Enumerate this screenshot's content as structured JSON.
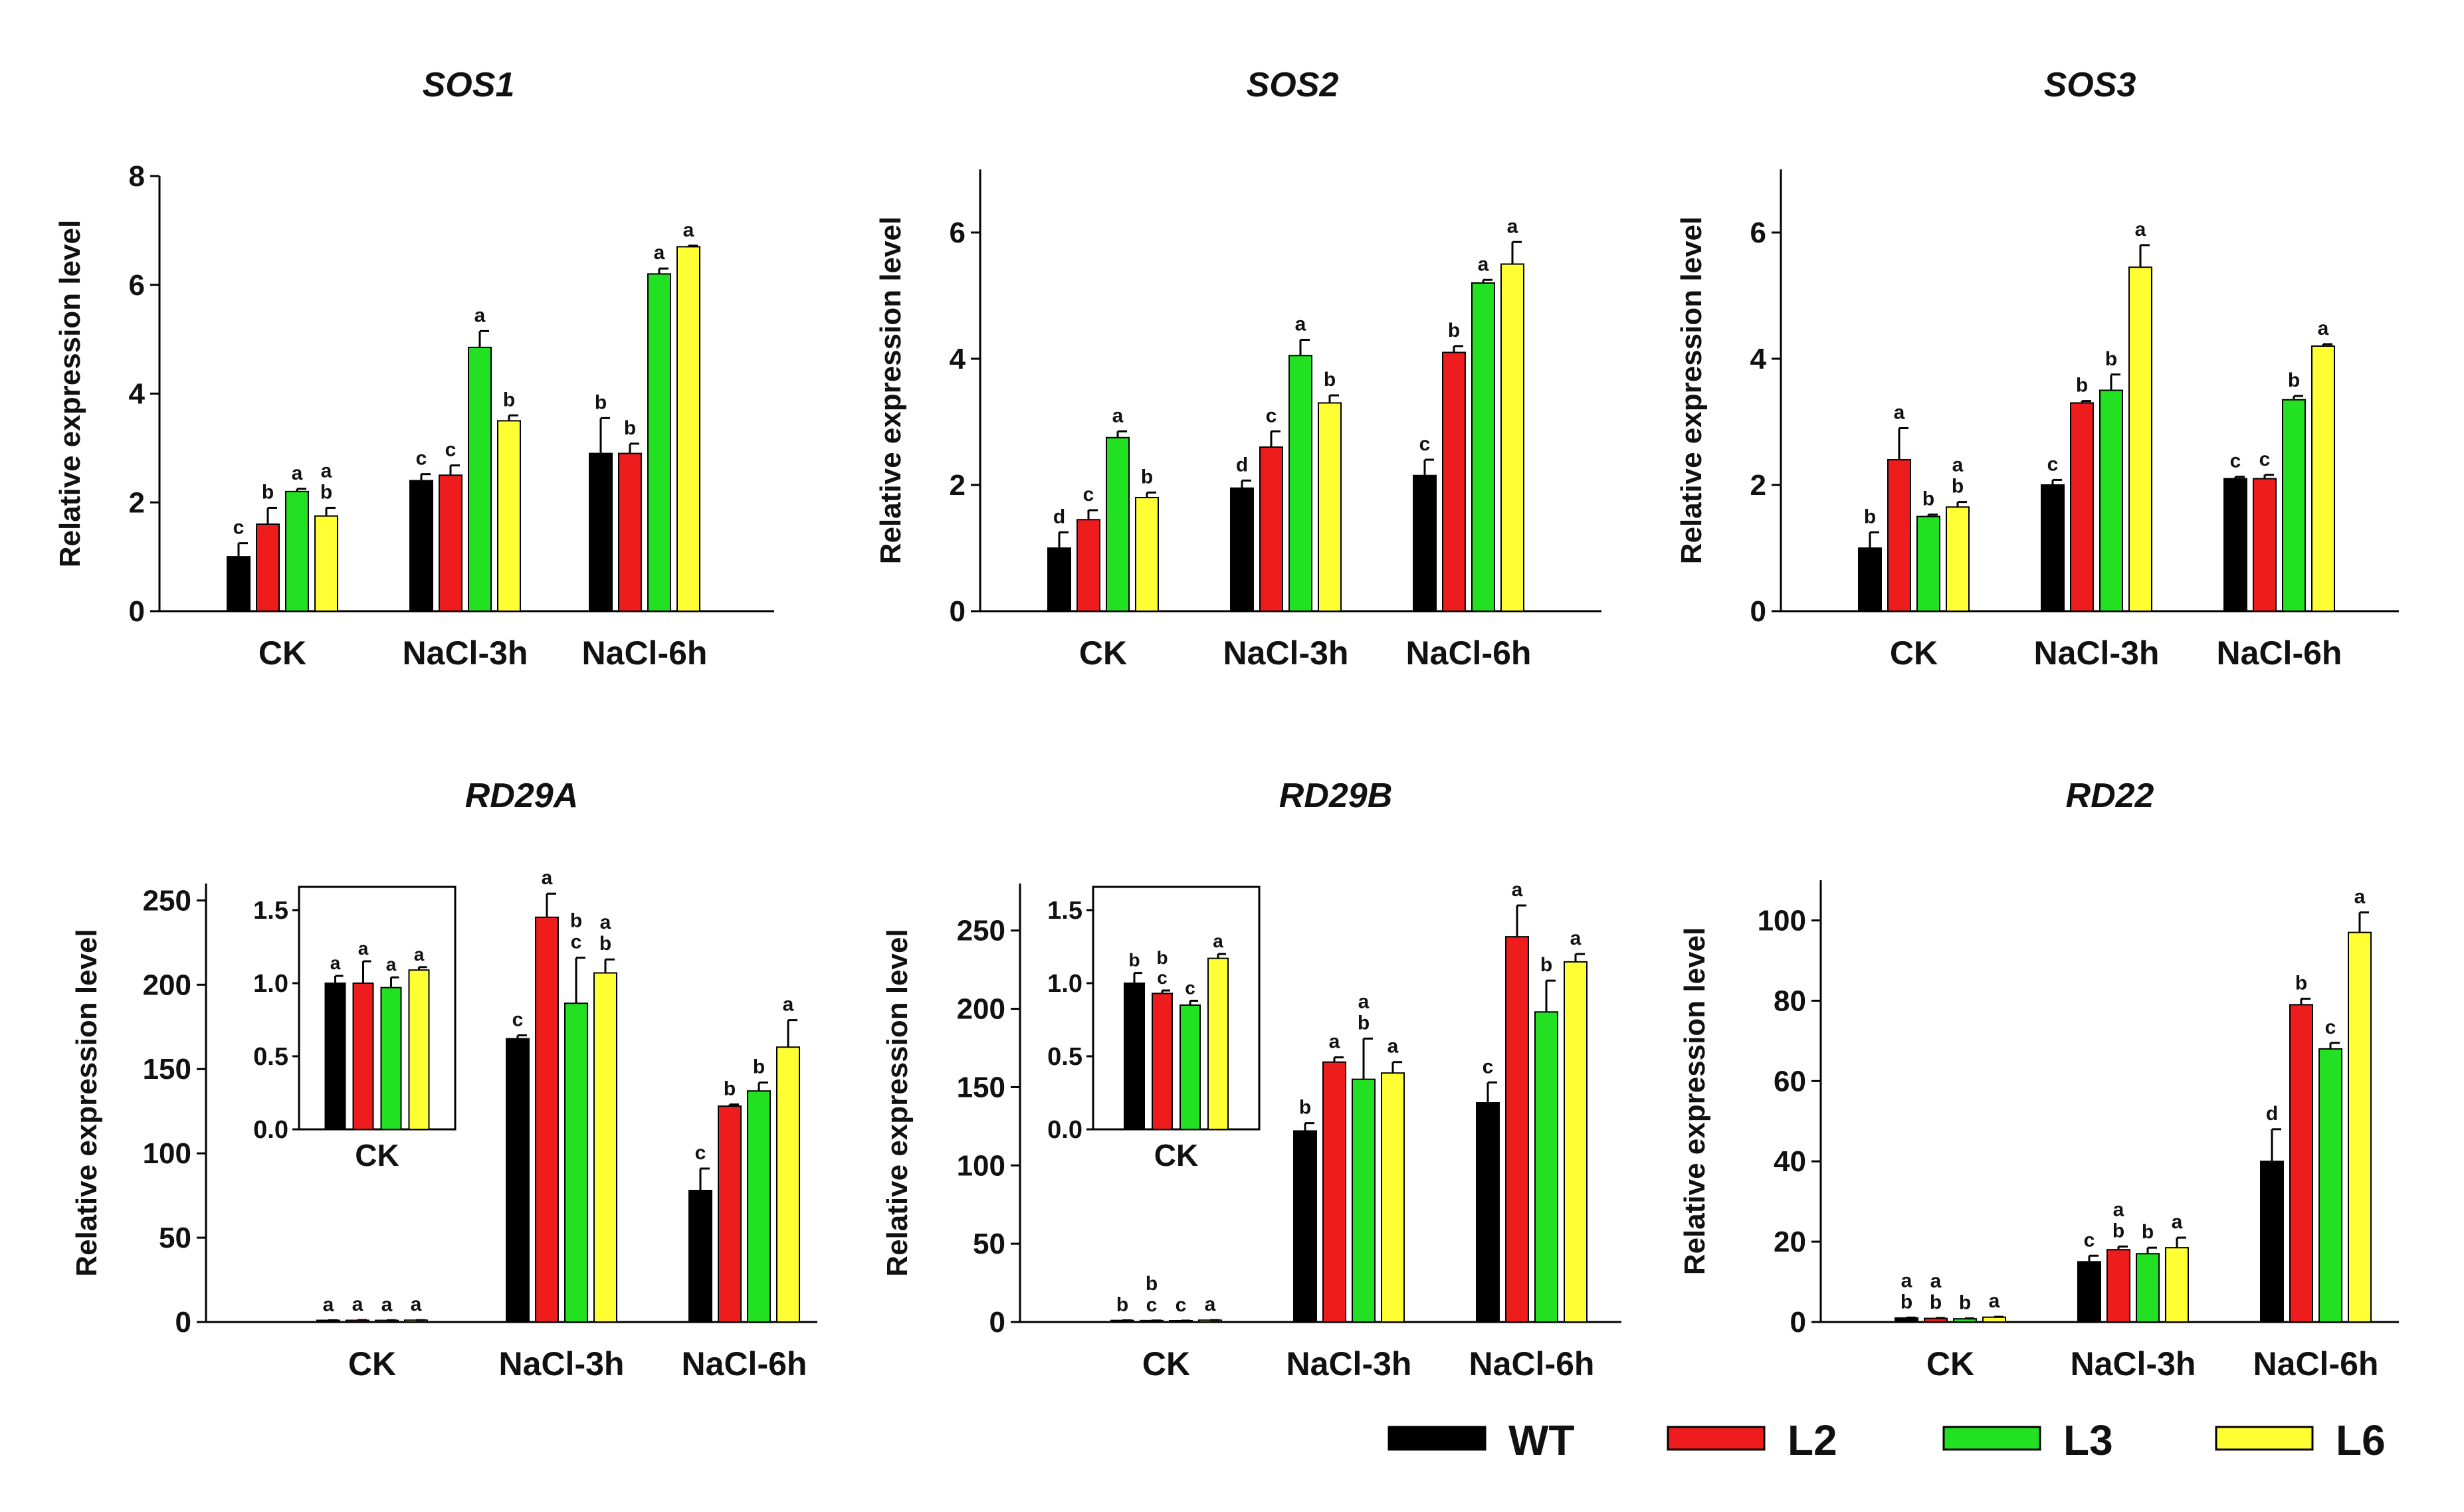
{
  "legend": {
    "position": "bottom-right",
    "entries": [
      {
        "name": "WT",
        "color": "#000000"
      },
      {
        "name": "L2",
        "color": "#ee1c1c"
      },
      {
        "name": "L3",
        "color": "#22e022"
      },
      {
        "name": "L6",
        "color": "#ffff33"
      }
    ]
  },
  "chart_data": [
    {
      "type": "bar",
      "title": "SOS1",
      "ylabel": "Relative expression level",
      "ylim": [
        0,
        8
      ],
      "yticks": [
        0,
        2,
        4,
        6,
        8
      ],
      "categories": [
        "CK",
        "NaCl-3h",
        "NaCl-6h"
      ],
      "series": [
        {
          "name": "WT",
          "values": [
            1.0,
            2.4,
            2.9
          ],
          "errors": [
            0.25,
            0.12,
            0.65
          ],
          "letters": [
            "c",
            "c",
            "b"
          ]
        },
        {
          "name": "L2",
          "values": [
            1.6,
            2.5,
            2.9
          ],
          "errors": [
            0.3,
            0.18,
            0.18
          ],
          "letters": [
            "b",
            "c",
            "b"
          ]
        },
        {
          "name": "L3",
          "values": [
            2.2,
            4.85,
            6.2
          ],
          "errors": [
            0.05,
            0.3,
            0.1
          ],
          "letters": [
            "a",
            "a",
            "a"
          ]
        },
        {
          "name": "L6",
          "values": [
            1.75,
            3.5,
            6.7
          ],
          "errors": [
            0.15,
            0.1,
            0.02
          ],
          "letters": [
            "a\nb",
            "b",
            "a"
          ]
        }
      ]
    },
    {
      "type": "bar",
      "title": "SOS2",
      "ylabel": "Relative expression level",
      "ylim": [
        0,
        7
      ],
      "yticks": [
        0,
        2,
        4,
        6
      ],
      "categories": [
        "CK",
        "NaCl-3h",
        "NaCl-6h"
      ],
      "series": [
        {
          "name": "WT",
          "values": [
            1.0,
            1.95,
            2.15
          ],
          "errors": [
            0.25,
            0.12,
            0.25
          ],
          "letters": [
            "d",
            "d",
            "c"
          ]
        },
        {
          "name": "L2",
          "values": [
            1.45,
            2.6,
            4.1
          ],
          "errors": [
            0.15,
            0.25,
            0.1
          ],
          "letters": [
            "c",
            "c",
            "b"
          ]
        },
        {
          "name": "L3",
          "values": [
            2.75,
            4.05,
            5.2
          ],
          "errors": [
            0.1,
            0.25,
            0.05
          ],
          "letters": [
            "a",
            "a",
            "a"
          ]
        },
        {
          "name": "L6",
          "values": [
            1.8,
            3.3,
            5.5
          ],
          "errors": [
            0.08,
            0.12,
            0.35
          ],
          "letters": [
            "b",
            "b",
            "a"
          ]
        }
      ]
    },
    {
      "type": "bar",
      "title": "SOS3",
      "ylabel": "Relative expression level",
      "ylim": [
        0,
        7
      ],
      "yticks": [
        0,
        2,
        4,
        6
      ],
      "categories": [
        "CK",
        "NaCl-3h",
        "NaCl-6h"
      ],
      "series": [
        {
          "name": "WT",
          "values": [
            1.0,
            2.0,
            2.1
          ],
          "errors": [
            0.25,
            0.08,
            0.03
          ],
          "letters": [
            "b",
            "c",
            "c"
          ]
        },
        {
          "name": "L2",
          "values": [
            2.4,
            3.3,
            2.1
          ],
          "errors": [
            0.5,
            0.03,
            0.06
          ],
          "letters": [
            "a",
            "b",
            "c"
          ]
        },
        {
          "name": "L3",
          "values": [
            1.5,
            3.5,
            3.35
          ],
          "errors": [
            0.03,
            0.25,
            0.06
          ],
          "letters": [
            "b",
            "b",
            "b"
          ]
        },
        {
          "name": "L6",
          "values": [
            1.65,
            5.45,
            4.2
          ],
          "errors": [
            0.08,
            0.35,
            0.03
          ],
          "letters": [
            "a\nb",
            "a",
            "a"
          ]
        }
      ]
    },
    {
      "type": "bar",
      "title": "RD29A",
      "ylabel": "Relative expression level",
      "ylim": [
        0,
        260
      ],
      "yticks": [
        0,
        50,
        100,
        150,
        200,
        250
      ],
      "categories": [
        "CK",
        "NaCl-3h",
        "NaCl-6h"
      ],
      "series": [
        {
          "name": "WT",
          "values": [
            1.0,
            168,
            78
          ],
          "errors": [
            0.05,
            2,
            13
          ],
          "letters": [
            "a",
            "c",
            "c"
          ]
        },
        {
          "name": "L2",
          "values": [
            1.0,
            240,
            128
          ],
          "errors": [
            0.15,
            14,
            1
          ],
          "letters": [
            "a",
            "a",
            "b"
          ]
        },
        {
          "name": "L3",
          "values": [
            0.97,
            189,
            137
          ],
          "errors": [
            0.07,
            27,
            5
          ],
          "letters": [
            "a",
            "b\nc",
            "b"
          ]
        },
        {
          "name": "L6",
          "values": [
            1.09,
            207,
            163
          ],
          "errors": [
            0.02,
            8,
            16
          ],
          "letters": [
            "a",
            "a\nb",
            "a"
          ]
        }
      ],
      "inset": {
        "category": "CK",
        "ylim": [
          0,
          1.5
        ],
        "yticks": [
          0.0,
          0.5,
          1.0,
          1.5
        ],
        "tick_labels": [
          "0.0",
          "0.5",
          "1.0",
          "1.5"
        ],
        "values": [
          1.0,
          1.0,
          0.97,
          1.09
        ],
        "errors": [
          0.05,
          0.15,
          0.07,
          0.02
        ],
        "letters": [
          "a",
          "a",
          "a",
          "a"
        ]
      }
    },
    {
      "type": "bar",
      "title": "RD29B",
      "ylabel": "Relative expression level",
      "ylim": [
        0,
        280
      ],
      "yticks": [
        0,
        50,
        100,
        150,
        200,
        250
      ],
      "categories": [
        "CK",
        "NaCl-3h",
        "NaCl-6h"
      ],
      "series": [
        {
          "name": "WT",
          "values": [
            1.0,
            122,
            140
          ],
          "errors": [
            0.07,
            5,
            13
          ],
          "letters": [
            "b",
            "b",
            "c"
          ]
        },
        {
          "name": "L2",
          "values": [
            0.93,
            166,
            246
          ],
          "errors": [
            0.02,
            3,
            20
          ],
          "letters": [
            "b\nc",
            "a",
            "a"
          ]
        },
        {
          "name": "L3",
          "values": [
            0.85,
            155,
            198
          ],
          "errors": [
            0.03,
            26,
            20
          ],
          "letters": [
            "c",
            "a\nb",
            "b"
          ]
        },
        {
          "name": "L6",
          "values": [
            1.17,
            159,
            230
          ],
          "errors": [
            0.03,
            7,
            5
          ],
          "letters": [
            "a",
            "a",
            "a"
          ]
        }
      ],
      "inset": {
        "category": "CK",
        "ylim": [
          0,
          1.5
        ],
        "yticks": [
          0.0,
          0.5,
          1.0,
          1.5
        ],
        "tick_labels": [
          "0.0",
          "0.5",
          "1.0",
          "1.5"
        ],
        "values": [
          1.0,
          0.93,
          0.85,
          1.17
        ],
        "errors": [
          0.07,
          0.02,
          0.03,
          0.03
        ],
        "letters": [
          "b",
          "b\nc",
          "c",
          "a"
        ]
      }
    },
    {
      "type": "bar",
      "title": "RD22",
      "ylabel": "Relative expression level",
      "ylim": [
        0,
        110
      ],
      "yticks": [
        0,
        20,
        40,
        60,
        80,
        100
      ],
      "categories": [
        "CK",
        "NaCl-3h",
        "NaCl-6h"
      ],
      "series": [
        {
          "name": "WT",
          "values": [
            1.0,
            15,
            40
          ],
          "errors": [
            0.1,
            1.5,
            8
          ],
          "letters": [
            "a\nb",
            "c",
            "d"
          ]
        },
        {
          "name": "L2",
          "values": [
            0.9,
            18,
            79
          ],
          "errors": [
            0.1,
            0.8,
            1.5
          ],
          "letters": [
            "a\nb",
            "a\nb",
            "b"
          ]
        },
        {
          "name": "L3",
          "values": [
            0.8,
            17,
            68
          ],
          "errors": [
            0.1,
            1.5,
            1.5
          ],
          "letters": [
            "b",
            "b",
            "c"
          ]
        },
        {
          "name": "L6",
          "values": [
            1.2,
            18.5,
            97
          ],
          "errors": [
            0.1,
            2.5,
            5
          ],
          "letters": [
            "a",
            "a",
            "a"
          ]
        }
      ]
    }
  ]
}
